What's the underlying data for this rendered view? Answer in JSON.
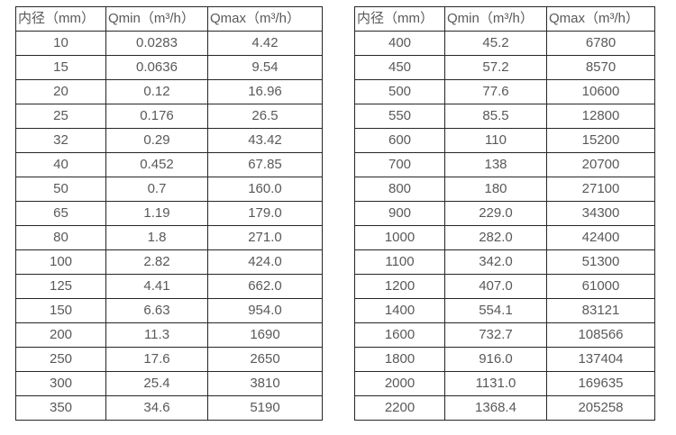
{
  "accent_colors": {
    "border": "#262626",
    "text": "#595959",
    "background": "#ffffff"
  },
  "tables": [
    {
      "name": "flow-spec-table-small-diameters",
      "headers": [
        "内径（mm）",
        "Qmin（m³/h）",
        "Qmax（m³/h）"
      ],
      "rows": [
        [
          "10",
          "0.0283",
          "4.42"
        ],
        [
          "15",
          "0.0636",
          "9.54"
        ],
        [
          "20",
          "0.12",
          "16.96"
        ],
        [
          "25",
          "0.176",
          "26.5"
        ],
        [
          "32",
          "0.29",
          "43.42"
        ],
        [
          "40",
          "0.452",
          "67.85"
        ],
        [
          "50",
          "0.7",
          "160.0"
        ],
        [
          "65",
          "1.19",
          "179.0"
        ],
        [
          "80",
          "1.8",
          "271.0"
        ],
        [
          "100",
          "2.82",
          "424.0"
        ],
        [
          "125",
          "4.41",
          "662.0"
        ],
        [
          "150",
          "6.63",
          "954.0"
        ],
        [
          "200",
          "11.3",
          "1690"
        ],
        [
          "250",
          "17.6",
          "2650"
        ],
        [
          "300",
          "25.4",
          "3810"
        ],
        [
          "350",
          "34.6",
          "5190"
        ]
      ]
    },
    {
      "name": "flow-spec-table-large-diameters",
      "headers": [
        "内径（mm）",
        "Qmin（m³/h）",
        "Qmax（m³/h）"
      ],
      "rows": [
        [
          "400",
          "45.2",
          "6780"
        ],
        [
          "450",
          "57.2",
          "8570"
        ],
        [
          "500",
          "77.6",
          "10600"
        ],
        [
          "550",
          "85.5",
          "12800"
        ],
        [
          "600",
          "110",
          "15200"
        ],
        [
          "700",
          "138",
          "20700"
        ],
        [
          "800",
          "180",
          "27100"
        ],
        [
          "900",
          "229.0",
          "34300"
        ],
        [
          "1000",
          "282.0",
          "42400"
        ],
        [
          "1100",
          "342.0",
          "51300"
        ],
        [
          "1200",
          "407.0",
          "61000"
        ],
        [
          "1400",
          "554.1",
          "83121"
        ],
        [
          "1600",
          "732.7",
          "108566"
        ],
        [
          "1800",
          "916.0",
          "137404"
        ],
        [
          "2000",
          "1131.0",
          "169635"
        ],
        [
          "2200",
          "1368.4",
          "205258"
        ]
      ]
    }
  ]
}
